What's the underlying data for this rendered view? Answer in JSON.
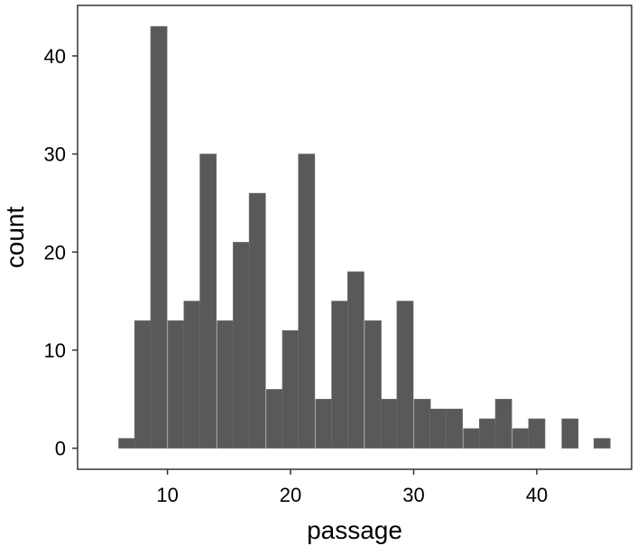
{
  "chart_data": {
    "type": "bar",
    "title": "",
    "xlabel": "passage",
    "ylabel": "count",
    "bin_width": 1.33,
    "bins": [
      {
        "x": 6.7,
        "count": 1
      },
      {
        "x": 8.0,
        "count": 13
      },
      {
        "x": 9.3,
        "count": 43
      },
      {
        "x": 10.7,
        "count": 13
      },
      {
        "x": 12.0,
        "count": 15
      },
      {
        "x": 13.3,
        "count": 30
      },
      {
        "x": 14.7,
        "count": 13
      },
      {
        "x": 16.0,
        "count": 21
      },
      {
        "x": 17.3,
        "count": 26
      },
      {
        "x": 18.7,
        "count": 6
      },
      {
        "x": 20.0,
        "count": 12
      },
      {
        "x": 21.3,
        "count": 30
      },
      {
        "x": 22.7,
        "count": 5
      },
      {
        "x": 24.0,
        "count": 15
      },
      {
        "x": 25.3,
        "count": 18
      },
      {
        "x": 26.7,
        "count": 13
      },
      {
        "x": 28.0,
        "count": 5
      },
      {
        "x": 29.3,
        "count": 15
      },
      {
        "x": 30.7,
        "count": 5
      },
      {
        "x": 32.0,
        "count": 4
      },
      {
        "x": 33.3,
        "count": 4
      },
      {
        "x": 34.7,
        "count": 2
      },
      {
        "x": 36.0,
        "count": 3
      },
      {
        "x": 37.3,
        "count": 5
      },
      {
        "x": 38.7,
        "count": 2
      },
      {
        "x": 40.0,
        "count": 3
      },
      {
        "x": 41.3,
        "count": 0
      },
      {
        "x": 42.7,
        "count": 3
      },
      {
        "x": 44.0,
        "count": 0
      },
      {
        "x": 45.3,
        "count": 1
      }
    ],
    "x_ticks": [
      10,
      20,
      30,
      40
    ],
    "y_ticks": [
      0,
      10,
      20,
      30,
      40
    ],
    "xlim": [
      2.7,
      47.7
    ],
    "ylim": [
      -2.15,
      45.15
    ],
    "grid": false,
    "legend": "none",
    "bar_color": "#595959",
    "bar_edge_color": "#6e6e6e",
    "panel_border_color": "#333333"
  }
}
